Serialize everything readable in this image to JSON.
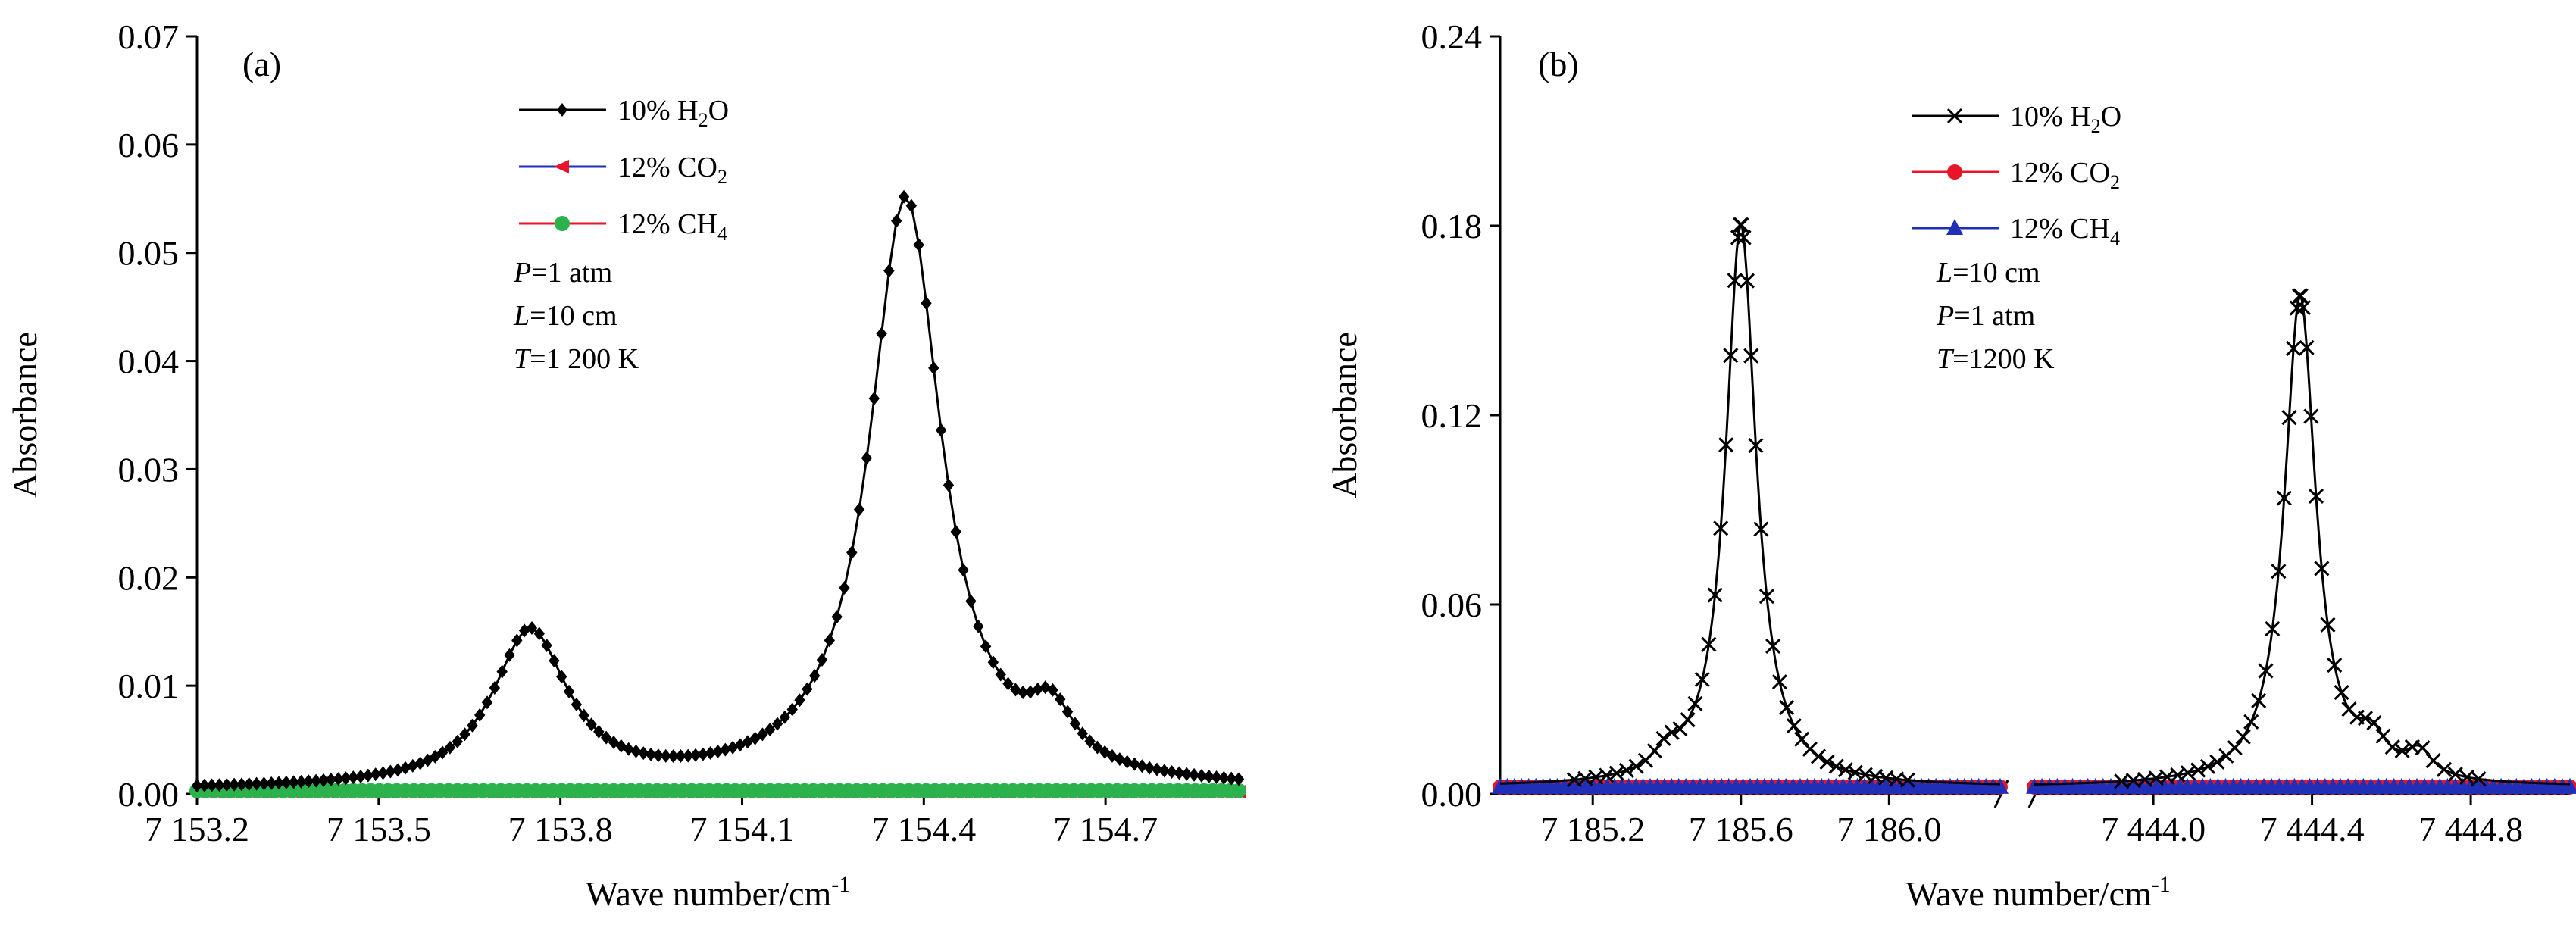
{
  "chart_data": [
    {
      "panel_label": "(a)",
      "type": "line",
      "xlabel": "Wave number/cm",
      "xlabel_sup": "-1",
      "ylabel": "Absorbance",
      "xlim": [
        7153.2,
        7154.92
      ],
      "ylim": [
        0,
        0.07
      ],
      "xticks": [
        7153.2,
        7153.5,
        7153.8,
        7154.1,
        7154.4,
        7154.7
      ],
      "xtick_labels": [
        "7 153.2",
        "7 153.5",
        "7 153.8",
        "7 154.1",
        "7 154.4",
        "7 154.7"
      ],
      "yticks": [
        0,
        0.01,
        0.02,
        0.03,
        0.04,
        0.05,
        0.06,
        0.07
      ],
      "ytick_labels": [
        "0.00",
        "0.01",
        "0.02",
        "0.03",
        "0.04",
        "0.05",
        "0.06",
        "0.07"
      ],
      "grid": false,
      "legend_position": "top-center",
      "conditions": [
        {
          "symbol": "P",
          "value": "=1 atm"
        },
        {
          "symbol": "L",
          "value": "=10 cm"
        },
        {
          "symbol": "T",
          "value": "=1 200 K"
        }
      ],
      "series": [
        {
          "name": "10% H2O",
          "label_parts": {
            "pre": "10% H",
            "sub": "2",
            "post": "O"
          },
          "color": "#000000",
          "marker": "diamond",
          "peaks": [
            {
              "x0": 7153.75,
              "amp": 0.0143,
              "gamma": 0.075
            },
            {
              "x0": 7154.37,
              "amp": 0.0546,
              "gamma": 0.072
            },
            {
              "x0": 7154.61,
              "amp": 0.0048,
              "gamma": 0.045
            }
          ],
          "baseline": 0.0003,
          "x_range": [
            7153.2,
            7154.92
          ],
          "n_points": 140
        },
        {
          "name": "12% CO2",
          "label_parts": {
            "pre": "12% CO",
            "sub": "2",
            "post": ""
          },
          "color": "#1f2fb8",
          "marker_color": "#e8142a",
          "marker": "triangle-left",
          "constant": 0.0002,
          "x_range": [
            7153.2,
            7154.92
          ]
        },
        {
          "name": "12% CH4",
          "label_parts": {
            "pre": "12% CH",
            "sub": "4",
            "post": ""
          },
          "color": "#e8142a",
          "marker_color": "#2bb24c",
          "marker": "circle",
          "constant": 0.0003,
          "x_range": [
            7153.2,
            7154.92
          ]
        }
      ]
    },
    {
      "panel_label": "(b)",
      "type": "line",
      "xlabel": "Wave number/cm",
      "xlabel_sup": "-1",
      "ylabel": "Absorbance",
      "broken_x_axis": true,
      "segments": [
        {
          "xlim": [
            7184.95,
            7186.3
          ],
          "xticks": [
            7185.2,
            7185.6,
            7186.0
          ],
          "xtick_labels": [
            "7 185.2",
            "7 185.6",
            "7 186.0"
          ]
        },
        {
          "xlim": [
            7443.7,
            7445.05
          ],
          "xticks": [
            7444.0,
            7444.4,
            7444.8
          ],
          "xtick_labels": [
            "7 444.0",
            "7 444.4",
            "7 444.8"
          ]
        }
      ],
      "ylim": [
        0,
        0.24
      ],
      "yticks": [
        0,
        0.06,
        0.12,
        0.18,
        0.24
      ],
      "ytick_labels": [
        "0.00",
        "0.06",
        "0.12",
        "0.18",
        "0.24"
      ],
      "grid": false,
      "legend_position": "top-center",
      "conditions": [
        {
          "symbol": "L",
          "value": "=10 cm"
        },
        {
          "symbol": "P",
          "value": "=1 atm"
        },
        {
          "symbol": "T",
          "value": "=1200 K"
        }
      ],
      "series": [
        {
          "name": "10% H2O",
          "label_parts": {
            "pre": "10% H",
            "sub": "2",
            "post": "O"
          },
          "color": "#000000",
          "marker": "x",
          "peaks_by_segment": [
            [
              {
                "x0": 7185.6,
                "amp": 0.178,
                "gamma": 0.05
              },
              {
                "x0": 7185.4,
                "amp": 0.006,
                "gamma": 0.04
              }
            ],
            [
              {
                "x0": 7444.37,
                "amp": 0.155,
                "gamma": 0.048
              },
              {
                "x0": 7444.55,
                "amp": 0.01,
                "gamma": 0.045
              },
              {
                "x0": 7444.67,
                "amp": 0.008,
                "gamma": 0.04
              }
            ]
          ],
          "baseline": 0.0022,
          "points_per_segment": 45
        },
        {
          "name": "12% CO2",
          "label_parts": {
            "pre": "12% CO",
            "sub": "2",
            "post": ""
          },
          "color": "#e8142a",
          "marker_color": "#e8142a",
          "marker": "circle",
          "constant": 0.0022
        },
        {
          "name": "12% CH4",
          "label_parts": {
            "pre": "12% CH",
            "sub": "4",
            "post": ""
          },
          "color": "#1f2fb8",
          "marker_color": "#1f2fb8",
          "marker": "triangle-up",
          "constant": 0.0022
        }
      ]
    }
  ]
}
